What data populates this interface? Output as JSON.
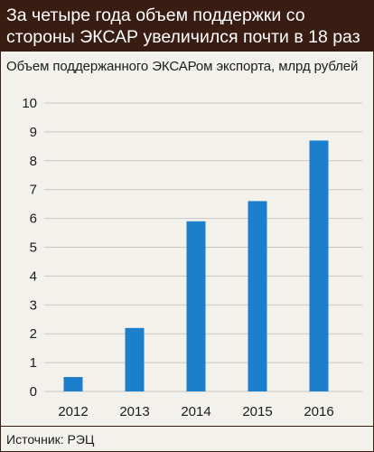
{
  "header": {
    "title": "За четыре года объем поддержки со стороны ЭКСАР увеличился почти в 18 раз"
  },
  "source": "Источник: РЭЦ",
  "colors": {
    "header_bg": "#3a1d12",
    "bar": "#1c7fcb",
    "grid": "#c9c6bf",
    "background": "#f3f1ec"
  },
  "chart_data": {
    "type": "bar",
    "title": "Объем поддержанного ЭКСАРом экспорта, млрд рублей",
    "categories": [
      "2012",
      "2013",
      "2014",
      "2015",
      "2016"
    ],
    "values": [
      0.5,
      2.2,
      5.9,
      6.6,
      8.7
    ],
    "ylim": [
      0,
      10
    ],
    "yticks": [
      "0",
      "1",
      "2",
      "3",
      "4",
      "5",
      "6",
      "7",
      "8",
      "9",
      "10"
    ],
    "grid": true,
    "legend": "none"
  }
}
